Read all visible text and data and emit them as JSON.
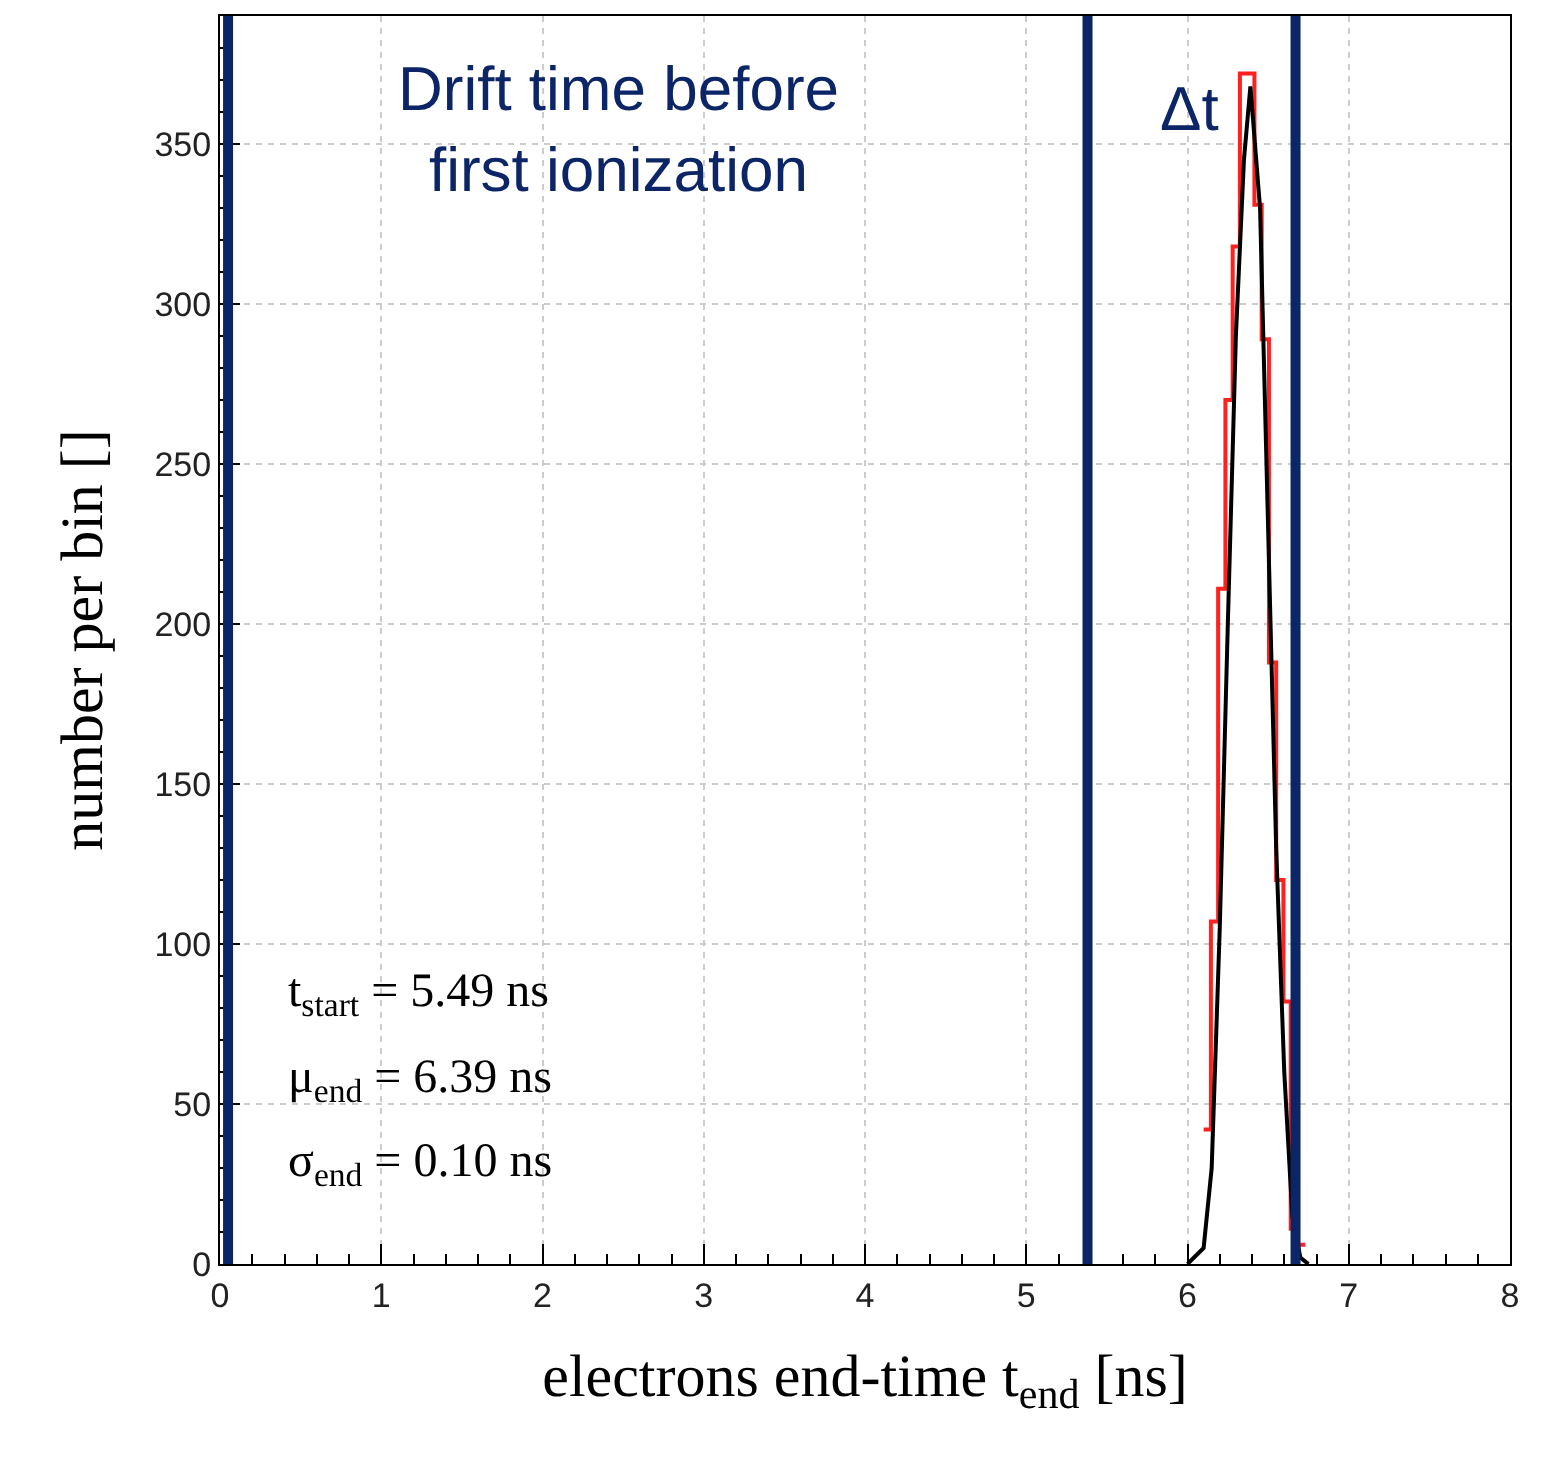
{
  "chart_data": {
    "type": "histogram",
    "xlabel": "electrons end-time t$_{end}$ [ns]",
    "ylabel": "number per bin []",
    "bins": [
      6.1,
      6.145,
      6.19,
      6.235,
      6.28,
      6.325,
      6.37,
      6.415,
      6.46,
      6.505,
      6.55,
      6.595,
      6.64,
      6.685,
      6.73
    ],
    "values": [
      42,
      107,
      211,
      270,
      318,
      372,
      372,
      331,
      289,
      188,
      120,
      82,
      11,
      6
    ],
    "color": "#ff2020",
    "series": [
      {
        "type": "line",
        "color": "#000000",
        "x": [
          6.0,
          6.1,
          6.15,
          6.2,
          6.25,
          6.3,
          6.35,
          6.39,
          6.45,
          6.5,
          6.55,
          6.6,
          6.65,
          6.7,
          6.75
        ],
        "values": [
          0,
          5,
          30,
          105,
          200,
          290,
          345,
          368,
          330,
          230,
          130,
          60,
          15,
          2,
          0
        ]
      }
    ],
    "ref_lines": [
      {
        "axis": "x",
        "value": 0.05,
        "color": "#0b2566"
      },
      {
        "axis": "x",
        "value": 5.38,
        "color": "#0b2566"
      },
      {
        "axis": "x",
        "value": 6.67,
        "color": "#0b2566"
      }
    ],
    "annotations": [
      "Drift time before\nfirst ionization",
      "Δt",
      "t$_{start}$ = 5.49 ns",
      "μ$_{end}$ = 6.39 ns",
      "σ$_{end}$ = 0.10 ns"
    ],
    "xlim": [
      0,
      8
    ],
    "xticks": [
      0,
      1,
      2,
      3,
      4,
      5,
      6,
      7,
      8
    ],
    "ylim": [
      0,
      390
    ],
    "yticks": [
      0,
      50,
      100,
      150,
      200,
      250,
      300,
      350
    ],
    "grid": true,
    "line_style": "solid",
    "marker": "none"
  }
}
